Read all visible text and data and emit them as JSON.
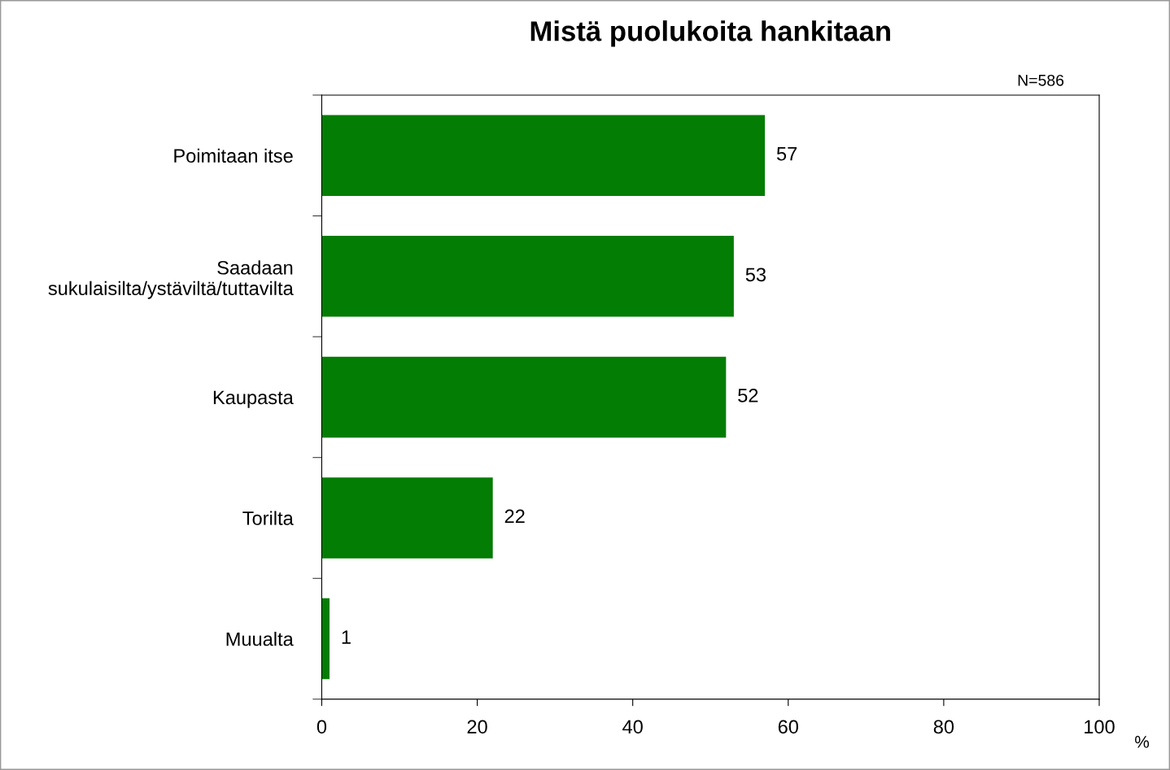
{
  "chart_data": {
    "type": "bar",
    "orientation": "horizontal",
    "title": "Mistä puolukoita hankitaan",
    "xlabel": "%",
    "categories": [
      "Poimitaan itse",
      "Saadaan\nsukulaisilta/ystäviltä/tuttavilta",
      "Kaupasta",
      "Torilta",
      "Muualta"
    ],
    "values": [
      57,
      53,
      52,
      22,
      1
    ],
    "color": "#037d03",
    "data_labels": true,
    "xlim": [
      0,
      100
    ],
    "xticks": [
      0,
      20,
      40,
      60,
      80,
      100
    ],
    "grid": false,
    "annotations": [
      "N=586"
    ]
  }
}
